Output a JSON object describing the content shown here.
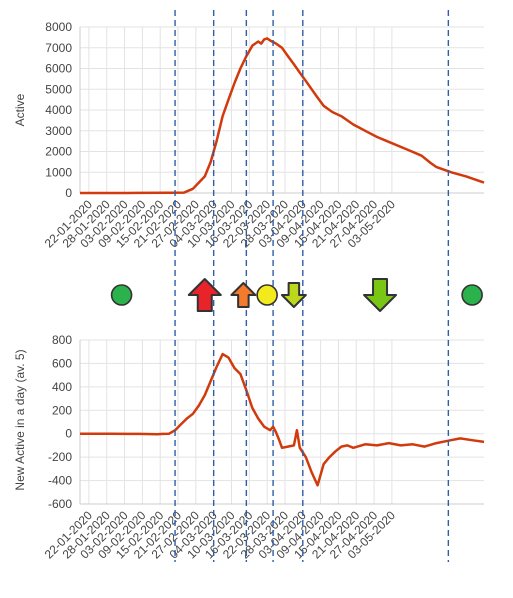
{
  "colors": {
    "line": "#d13a0c",
    "grid": "#e3e3e3",
    "axis": "#777777",
    "text": "#444444",
    "vline": "#2e5ea8",
    "green": "#2bb24c",
    "red": "#e8232a",
    "orange": "#f47a2c",
    "yellow": "#f2ea1c",
    "yellowgreen": "#bcd81c",
    "lightgreen": "#7ac614"
  },
  "chart_data": [
    {
      "type": "line",
      "title": "",
      "xlabel": "",
      "ylabel": "Active",
      "ylim": [
        0,
        8000
      ],
      "yticks": [
        "0",
        "1000",
        "2000",
        "3000",
        "4000",
        "5000",
        "6000",
        "7000",
        "8000"
      ],
      "xticks": [
        "22-01-2020",
        "28-01-2020",
        "03-02-2020",
        "09-02-2020",
        "15-02-2020",
        "21-02-2020",
        "27-02-2020",
        "04-03-2020",
        "10-03-2020",
        "16-03-2020",
        "22-03-2020",
        "28-03-2020",
        "03-04-2020",
        "09-04-2020",
        "15-04-2020",
        "21-04-2020",
        "27-04-2020",
        "03-05-2020"
      ],
      "grid": true,
      "series": [
        {
          "values": [
            [
              0,
              0
            ],
            [
              10,
              0
            ],
            [
              20,
              5
            ],
            [
              30,
              10
            ],
            [
              35,
              20
            ],
            [
              36,
              80
            ],
            [
              38,
              200
            ],
            [
              40,
              500
            ],
            [
              42,
              800
            ],
            [
              44,
              1500
            ],
            [
              46,
              2500
            ],
            [
              48,
              3700
            ],
            [
              50,
              4500
            ],
            [
              52,
              5300
            ],
            [
              54,
              6000
            ],
            [
              56,
              6600
            ],
            [
              58,
              7100
            ],
            [
              60,
              7300
            ],
            [
              61,
              7200
            ],
            [
              62,
              7400
            ],
            [
              63,
              7450
            ],
            [
              64,
              7350
            ],
            [
              66,
              7200
            ],
            [
              68,
              7000
            ],
            [
              70,
              6600
            ],
            [
              72,
              6200
            ],
            [
              74,
              5800
            ],
            [
              76,
              5400
            ],
            [
              78,
              5000
            ],
            [
              80,
              4600
            ],
            [
              82,
              4200
            ],
            [
              85,
              3900
            ],
            [
              88,
              3700
            ],
            [
              92,
              3300
            ],
            [
              96,
              3000
            ],
            [
              100,
              2700
            ],
            [
              105,
              2400
            ],
            [
              110,
              2100
            ],
            [
              115,
              1800
            ],
            [
              118,
              1450
            ],
            [
              120,
              1250
            ],
            [
              125,
              1000
            ],
            [
              130,
              800
            ],
            [
              134,
              600
            ],
            [
              136,
              500
            ]
          ]
        }
      ]
    },
    {
      "type": "line",
      "title": "",
      "xlabel": "",
      "ylabel": "New Active in a day (av. 5)",
      "ylim": [
        -600,
        800
      ],
      "yticks": [
        "800",
        "600",
        "400",
        "200",
        "0",
        "-200",
        "-400",
        "-600"
      ],
      "xticks": [
        "22-01-2020",
        "28-01-2020",
        "03-02-2020",
        "09-02-2020",
        "15-02-2020",
        "21-02-2020",
        "27-02-2020",
        "04-03-2020",
        "10-03-2020",
        "16-03-2020",
        "22-03-2020",
        "28-03-2020",
        "03-04-2020",
        "09-04-2020",
        "15-04-2020",
        "21-04-2020",
        "27-04-2020",
        "03-05-2020"
      ],
      "grid": true,
      "series": [
        {
          "values": [
            [
              0,
              0
            ],
            [
              10,
              0
            ],
            [
              20,
              -2
            ],
            [
              26,
              -5
            ],
            [
              28,
              -2
            ],
            [
              30,
              0
            ],
            [
              32,
              30
            ],
            [
              34,
              80
            ],
            [
              36,
              130
            ],
            [
              38,
              170
            ],
            [
              40,
              240
            ],
            [
              42,
              330
            ],
            [
              44,
              450
            ],
            [
              46,
              570
            ],
            [
              48,
              680
            ],
            [
              50,
              650
            ],
            [
              52,
              560
            ],
            [
              54,
              510
            ],
            [
              56,
              370
            ],
            [
              58,
              220
            ],
            [
              60,
              130
            ],
            [
              62,
              60
            ],
            [
              64,
              30
            ],
            [
              65,
              60
            ],
            [
              66,
              10
            ],
            [
              67,
              -50
            ],
            [
              68,
              -120
            ],
            [
              70,
              -110
            ],
            [
              72,
              -100
            ],
            [
              73,
              30
            ],
            [
              74,
              -120
            ],
            [
              76,
              -200
            ],
            [
              78,
              -330
            ],
            [
              80,
              -440
            ],
            [
              82,
              -260
            ],
            [
              84,
              -200
            ],
            [
              86,
              -150
            ],
            [
              88,
              -110
            ],
            [
              90,
              -100
            ],
            [
              92,
              -120
            ],
            [
              96,
              -90
            ],
            [
              100,
              -100
            ],
            [
              104,
              -80
            ],
            [
              108,
              -100
            ],
            [
              112,
              -90
            ],
            [
              116,
              -110
            ],
            [
              120,
              -80
            ],
            [
              124,
              -60
            ],
            [
              128,
              -40
            ],
            [
              132,
              -55
            ],
            [
              136,
              -70
            ]
          ]
        }
      ]
    }
  ],
  "status_markers": [
    {
      "kind": "green-dot",
      "x": 14
    },
    {
      "kind": "red-up-arrow",
      "x": 42
    },
    {
      "kind": "orange-up-arrow",
      "x": 55
    },
    {
      "kind": "yellow-dot",
      "x": 63
    },
    {
      "kind": "yellowgreen-down-arrow",
      "x": 72
    },
    {
      "kind": "lightgreen-down-arrow",
      "x": 101
    },
    {
      "kind": "green-dot",
      "x": 132
    }
  ],
  "phase_lines_x": [
    32,
    45,
    56,
    65,
    75,
    124
  ]
}
